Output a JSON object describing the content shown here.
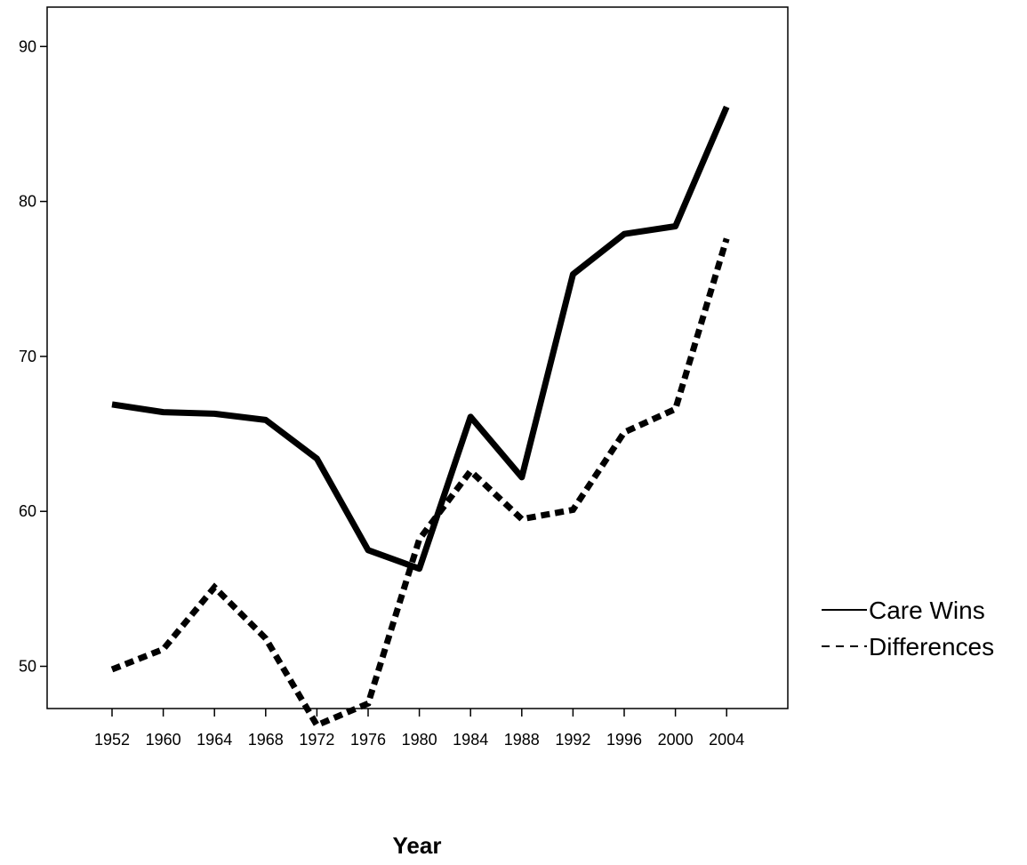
{
  "chart_data": {
    "type": "line",
    "title": "",
    "xlabel": "Year",
    "ylabel": "",
    "categories": [
      "1952",
      "1960",
      "1964",
      "1968",
      "1972",
      "1976",
      "1980",
      "1984",
      "1988",
      "1992",
      "1996",
      "2000",
      "2004"
    ],
    "yticks": [
      50,
      60,
      70,
      80,
      90
    ],
    "ylim": [
      43,
      93
    ],
    "grid": false,
    "legend_position": "right",
    "series": [
      {
        "name": "Care Wins",
        "style": "solid",
        "color": "#000000",
        "values": [
          66.9,
          66.4,
          66.3,
          65.9,
          63.4,
          57.5,
          56.3,
          66.1,
          62.2,
          75.3,
          77.9,
          78.4,
          86.1
        ]
      },
      {
        "name": "Differences",
        "style": "dashed",
        "color": "#000000",
        "values": [
          49.8,
          51.1,
          55.1,
          51.8,
          46.2,
          47.6,
          58.2,
          62.6,
          59.5,
          60.1,
          65.1,
          66.6,
          77.6
        ]
      }
    ]
  }
}
